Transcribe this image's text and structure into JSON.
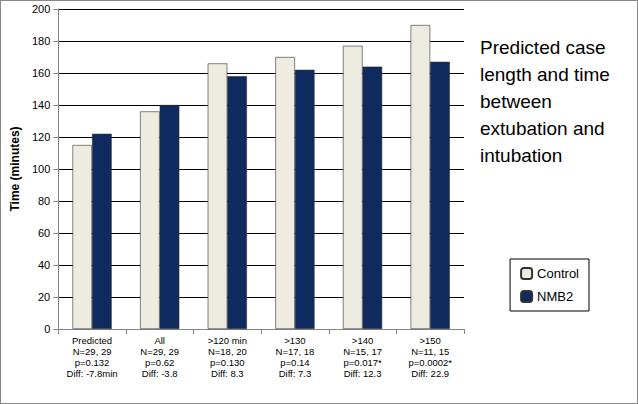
{
  "chart_data": {
    "type": "bar",
    "title": "Predicted case length and time between extubation and intubation",
    "y_label": "Time (minutes)",
    "categories": [
      "Predicted\nN=29, 29\np=0.132\nDiff: -7.8min",
      "All\nN=29, 29\np=0.62\nDiff: -3.8",
      ">120 min\nN=18, 20\np=0.130\nDiff: 8.3",
      ">130\nN=17, 18\np=0.14\nDiff: 7.3",
      ">140\nN=15, 17\np=0.017*\nDiff: 12.3",
      ">150\nN=11, 15\np=0.0002*\nDiff: 22.9"
    ],
    "series": [
      {
        "name": "Control",
        "color": "#eeece1",
        "values": [
          115,
          136,
          166,
          170,
          177,
          190
        ]
      },
      {
        "name": "NMB2",
        "color": "#0e2a5e",
        "values": [
          122,
          140,
          158,
          162,
          164,
          167
        ]
      }
    ],
    "ylim": [
      0,
      200
    ],
    "yticks": [
      0,
      20,
      40,
      60,
      80,
      100,
      120,
      140,
      160,
      180,
      200
    ],
    "grid": true,
    "legend": "right"
  }
}
